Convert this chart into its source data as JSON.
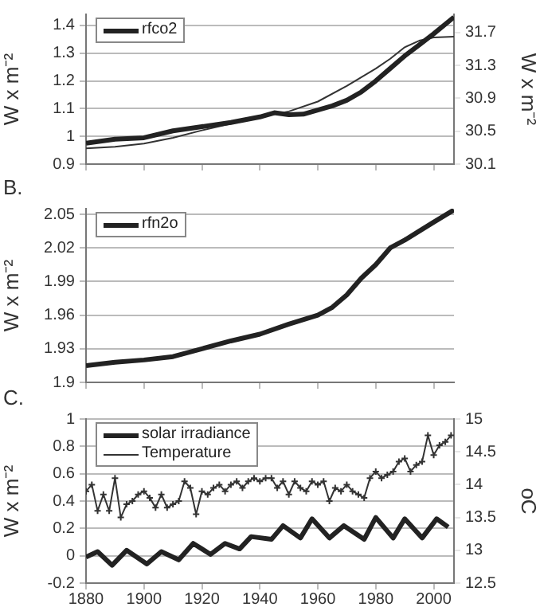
{
  "chart_data": [
    {
      "type": "line",
      "ylabel": "W x m⁻²",
      "y2label": "W x m⁻²",
      "x": [
        1880,
        1890,
        1900,
        1910,
        1920,
        1930,
        1940,
        1945,
        1950,
        1955,
        1960,
        1965,
        1970,
        1975,
        1980,
        1985,
        1990,
        1995,
        2000,
        2007
      ],
      "xlim": [
        1880,
        2007
      ],
      "xticks": [
        1880,
        1900,
        1920,
        1940,
        1960,
        1980,
        2000
      ],
      "ylim": [
        0.9,
        1.44
      ],
      "yticks": [
        0.9,
        1,
        1.1,
        1.2,
        1.3,
        1.4
      ],
      "y2lim": [
        30.1,
        31.92
      ],
      "y2ticks": [
        30.1,
        30.5,
        30.9,
        31.3,
        31.7
      ],
      "grid": "y",
      "legend": "top left",
      "tick_labels": "y",
      "marker": "none",
      "series": [
        {
          "name": "rfco2",
          "color": "#222222",
          "values": [
            0.975,
            0.99,
            0.995,
            1.02,
            1.035,
            1.05,
            1.07,
            1.085,
            1.078,
            1.08,
            1.095,
            1.11,
            1.13,
            1.16,
            1.2,
            1.245,
            1.29,
            1.33,
            1.37,
            1.43
          ]
        },
        {
          "color": "#333333",
          "axis": "y2",
          "x": [
            1880,
            1890,
            1900,
            1910,
            1920,
            1930,
            1940,
            1950,
            1960,
            1970,
            1980,
            1985,
            1990,
            1995,
            2000,
            2007
          ],
          "values": [
            30.29,
            30.31,
            30.35,
            30.42,
            30.51,
            30.59,
            30.67,
            30.74,
            30.86,
            31.05,
            31.26,
            31.38,
            31.52,
            31.6,
            31.64,
            31.65
          ]
        }
      ]
    },
    {
      "type": "line",
      "ylabel": "W x m⁻²",
      "annotations": [
        "B."
      ],
      "x": [
        1880,
        1890,
        1900,
        1910,
        1920,
        1930,
        1940,
        1950,
        1960,
        1965,
        1970,
        1975,
        1980,
        1985,
        1990,
        1995,
        2000,
        2007
      ],
      "xlim": [
        1880,
        2007
      ],
      "xticks": [
        1880,
        1900,
        1920,
        1940,
        1960,
        1980,
        2000
      ],
      "ylim": [
        1.9,
        2.055
      ],
      "yticks": [
        1.9,
        1.93,
        1.96,
        1.99,
        2.02,
        2.05
      ],
      "grid": "y",
      "legend": "top left",
      "tick_labels": "y",
      "marker": "none",
      "series": [
        {
          "name": "rfn2o",
          "color": "#222222",
          "values": [
            1.915,
            1.918,
            1.92,
            1.923,
            1.93,
            1.937,
            1.943,
            1.952,
            1.96,
            1.967,
            1.978,
            1.993,
            2.005,
            2.02,
            2.027,
            2.035,
            2.043,
            2.054
          ]
        }
      ]
    },
    {
      "type": "line",
      "ylabel": "W x m⁻²",
      "y2label": "oC",
      "annotations": [
        "C."
      ],
      "xlim": [
        1880,
        2007
      ],
      "xticks": [
        1880,
        1900,
        1920,
        1940,
        1960,
        1980,
        2000
      ],
      "ylim": [
        -0.2,
        1
      ],
      "yticks": [
        -0.2,
        0,
        0.2,
        0.4,
        0.6,
        0.8,
        1
      ],
      "y2lim": [
        12.5,
        15
      ],
      "y2ticks": [
        12.5,
        13,
        13.5,
        14,
        14.5,
        15
      ],
      "grid": "y",
      "legend": "top left",
      "series": [
        {
          "name": "solar irradiance",
          "color": "#222222",
          "marker": "none",
          "x": [
            1880,
            1884,
            1889,
            1894,
            1901,
            1906,
            1912,
            1917,
            1923,
            1928,
            1933,
            1937,
            1944,
            1948,
            1954,
            1958,
            1964,
            1969,
            1976,
            1980,
            1986,
            1990,
            1996,
            2001,
            2005
          ],
          "values": [
            -0.01,
            0.03,
            -0.07,
            0.04,
            -0.06,
            0.03,
            -0.03,
            0.09,
            0.01,
            0.09,
            0.05,
            0.14,
            0.12,
            0.22,
            0.13,
            0.27,
            0.13,
            0.22,
            0.12,
            0.28,
            0.13,
            0.27,
            0.13,
            0.27,
            0.21
          ]
        },
        {
          "name": "Temperature",
          "color": "#333333",
          "marker": "cross",
          "axis": "y2",
          "x": [
            1880,
            1882,
            1884,
            1886,
            1888,
            1890,
            1892,
            1894,
            1896,
            1898,
            1900,
            1902,
            1904,
            1906,
            1908,
            1910,
            1912,
            1914,
            1916,
            1918,
            1920,
            1922,
            1924,
            1926,
            1928,
            1930,
            1932,
            1934,
            1936,
            1938,
            1940,
            1942,
            1944,
            1946,
            1948,
            1950,
            1952,
            1954,
            1956,
            1958,
            1960,
            1962,
            1964,
            1966,
            1968,
            1970,
            1972,
            1974,
            1976,
            1978,
            1980,
            1982,
            1984,
            1986,
            1988,
            1990,
            1992,
            1994,
            1996,
            1998,
            2000,
            2002,
            2004,
            2006
          ],
          "values": [
            13.9,
            14.0,
            13.6,
            13.85,
            13.6,
            14.1,
            13.5,
            13.7,
            13.75,
            13.85,
            13.9,
            13.8,
            13.65,
            13.85,
            13.65,
            13.7,
            13.75,
            14.05,
            13.95,
            13.55,
            13.9,
            13.85,
            13.95,
            14.0,
            13.9,
            14.0,
            14.05,
            13.95,
            14.05,
            14.1,
            14.05,
            14.1,
            14.1,
            13.95,
            14.05,
            13.85,
            14.05,
            13.95,
            13.9,
            14.05,
            14.0,
            14.05,
            13.75,
            13.95,
            13.9,
            14.0,
            13.9,
            13.85,
            13.8,
            14.1,
            14.2,
            14.1,
            14.15,
            14.2,
            14.35,
            14.4,
            14.2,
            14.3,
            14.35,
            14.75,
            14.45,
            14.6,
            14.65,
            14.75
          ]
        }
      ]
    }
  ]
}
